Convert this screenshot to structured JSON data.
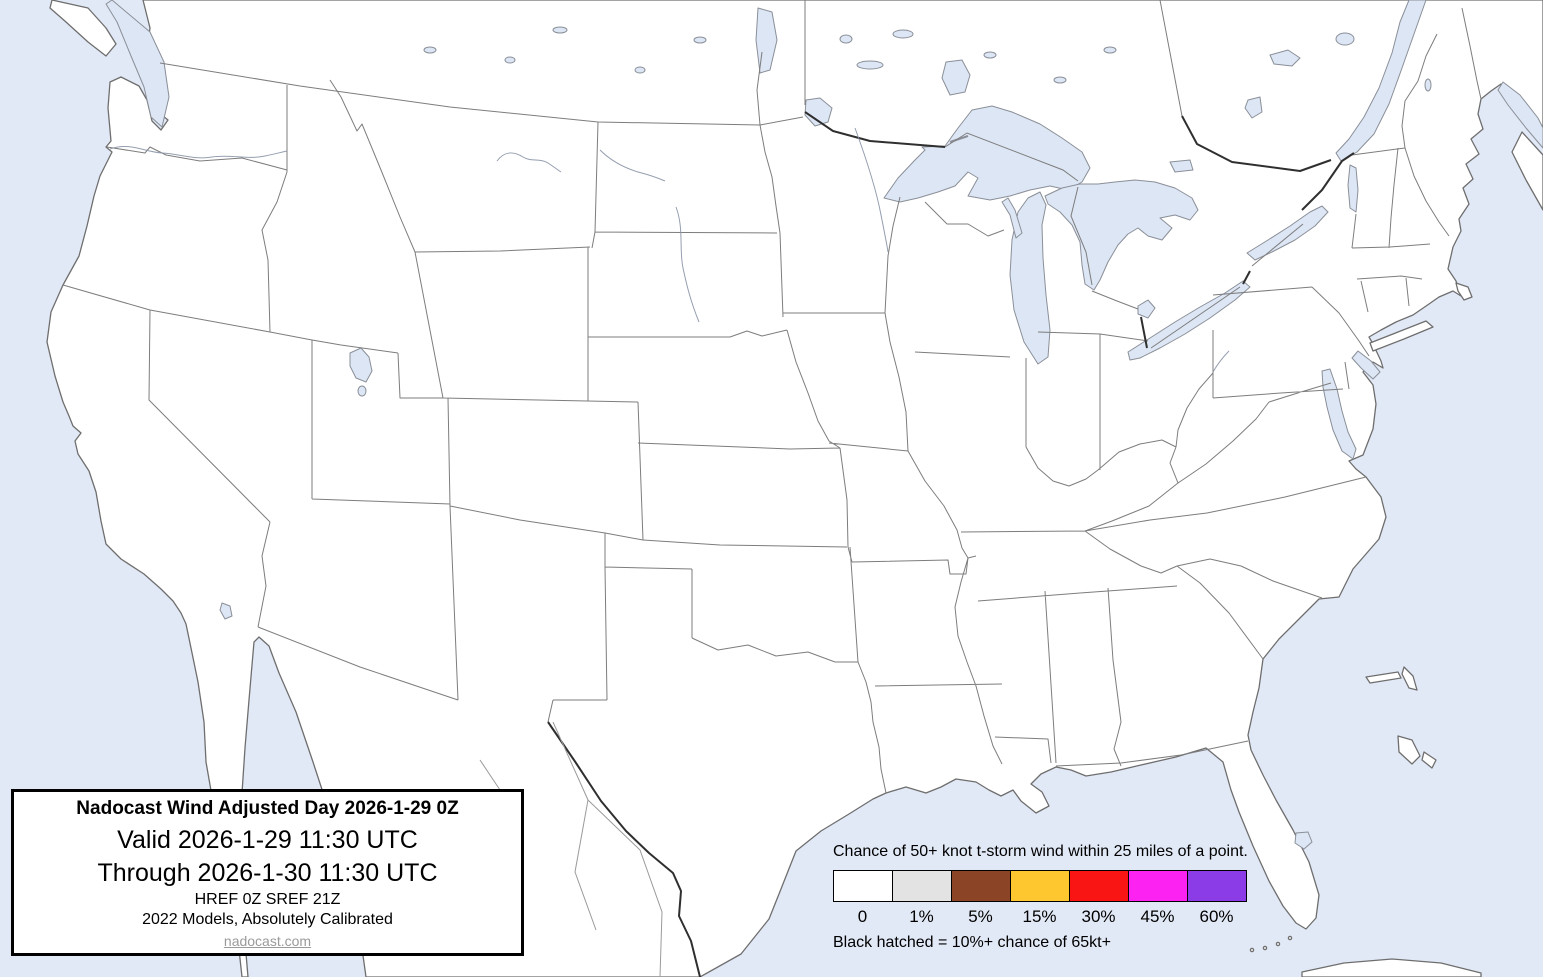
{
  "map": {
    "description": "Outline map of the contiguous United States with state borders, southern Canada, northern Mexico, Great Lakes, Bahamas and Cuba",
    "water_color": "#e2e9f6",
    "lake_color": "#dde6f4",
    "land_color": "#ffffff",
    "coast_color": "#6e6e6e",
    "state_border_color": "#7d7d7d",
    "intl_river_border_color": "#2f2f2f"
  },
  "title_box": {
    "title": "Nadocast Wind Adjusted Day 2026-1-29 0Z",
    "valid_line": "Valid 2026-1-29 11:30 UTC",
    "through_line": "Through 2026-1-30 11:30 UTC",
    "models_line": "HREF 0Z SREF 21Z",
    "calibration_line": "2022 Models, Absolutely Calibrated",
    "link": "nadocast.com"
  },
  "legend": {
    "title": "Chance of 50+ knot t-storm wind within 25 miles of a point.",
    "bins": [
      {
        "label": "0",
        "color": "#ffffff"
      },
      {
        "label": "1%",
        "color": "#e3e3e3"
      },
      {
        "label": "5%",
        "color": "#8b4526"
      },
      {
        "label": "15%",
        "color": "#ffc72f"
      },
      {
        "label": "30%",
        "color": "#f81513"
      },
      {
        "label": "45%",
        "color": "#fb22f2"
      },
      {
        "label": "60%",
        "color": "#8b3ce7"
      }
    ],
    "note": "Black hatched = 10%+ chance of 65kt+"
  }
}
